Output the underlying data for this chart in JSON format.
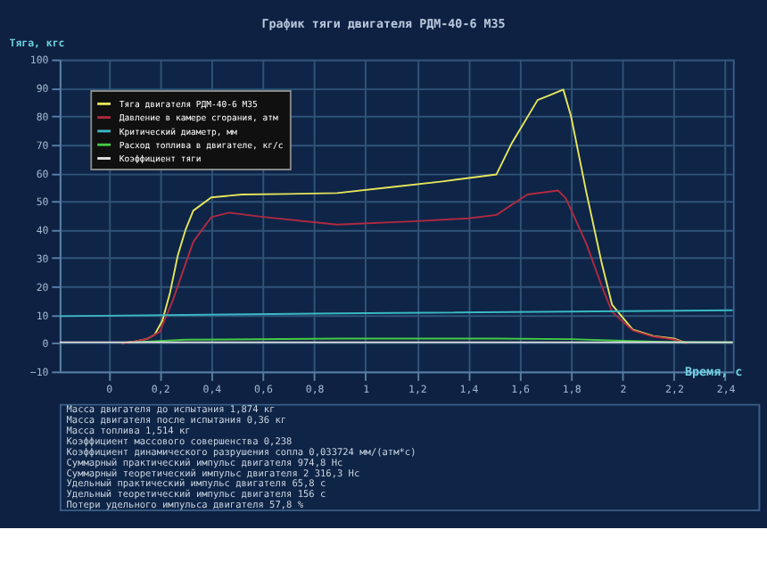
{
  "chart_data": {
    "type": "line",
    "title": "График тяги двигателя РДМ-40-6 М35",
    "xlabel": "Время, с",
    "ylabel": "Тяга, кгс",
    "xlim": [
      -0.19,
      2.43
    ],
    "xticks": [
      {
        "value": 0,
        "label": "0"
      },
      {
        "value": 0.2,
        "label": "0,2"
      },
      {
        "value": 0.4,
        "label": "0,4"
      },
      {
        "value": 0.6,
        "label": "0,6"
      },
      {
        "value": 0.8,
        "label": "0,8"
      },
      {
        "value": 1,
        "label": "1"
      },
      {
        "value": 1.2,
        "label": "1,2"
      },
      {
        "value": 1.4,
        "label": "1,4"
      },
      {
        "value": 1.6,
        "label": "1,6"
      },
      {
        "value": 1.8,
        "label": "1,8"
      },
      {
        "value": 2,
        "label": "2"
      },
      {
        "value": 2.2,
        "label": "2,2"
      },
      {
        "value": 2.4,
        "label": "2,4"
      }
    ],
    "ylim": [
      -10,
      100
    ],
    "yticks": [
      -10,
      0,
      10,
      20,
      30,
      40,
      50,
      60,
      70,
      80,
      90,
      100
    ],
    "grid": true,
    "legend": "top left",
    "marker": "none",
    "line_style": "solid",
    "series": [
      {
        "name": "Тяга двигателя РДМ-40-6 М35",
        "color": "#e6e65c",
        "x": [
          0.05,
          0.1,
          0.15,
          0.18,
          0.21,
          0.24,
          0.27,
          0.3,
          0.33,
          0.4,
          0.52,
          0.7,
          0.89,
          1.1,
          1.3,
          1.51,
          1.57,
          1.67,
          1.72,
          1.77,
          1.8,
          1.86,
          1.92,
          1.96,
          2.04,
          2.12,
          2.2,
          2.25
        ],
        "values": [
          0,
          0.5,
          1.5,
          3,
          8,
          18,
          31,
          40,
          46.7,
          51.4,
          52.4,
          52.6,
          52.9,
          55,
          57,
          59.5,
          70.6,
          85.7,
          87.5,
          89.4,
          80,
          53,
          28,
          13.5,
          4.8,
          2.5,
          1.6,
          0
        ]
      },
      {
        "name": "Давление в камере сгорания, атм",
        "color": "#b02a40",
        "x": [
          0.05,
          0.1,
          0.15,
          0.2,
          0.25,
          0.3,
          0.33,
          0.4,
          0.47,
          0.6,
          0.89,
          1.2,
          1.4,
          1.51,
          1.63,
          1.75,
          1.78,
          1.86,
          1.92,
          1.96,
          2.04,
          2.12,
          2.2,
          2.25
        ],
        "values": [
          0,
          0.5,
          1.5,
          4,
          15,
          28,
          35.7,
          44.4,
          46,
          44.5,
          41.8,
          43,
          44,
          45.2,
          52.4,
          53.8,
          51,
          35,
          20,
          11,
          4.5,
          2.3,
          1.3,
          0
        ]
      },
      {
        "name": "Критический диаметр, мм",
        "color": "#3ab8c4",
        "x": [
          -0.19,
          0.89,
          2.43
        ],
        "values": [
          9.5,
          10.5,
          11.6
        ]
      },
      {
        "name": "Расход топлива в двигателе, кг/с",
        "color": "#44cc44",
        "x": [
          0.1,
          0.3,
          0.9,
          1.5,
          1.8,
          2.0,
          2.2,
          2.43
        ],
        "values": [
          0.3,
          1.2,
          1.6,
          1.6,
          1.4,
          0.8,
          0.4,
          0.3
        ]
      },
      {
        "name": "Коэффициент тяги",
        "color": "#e4e4e4",
        "x": [
          -0.19,
          2.43
        ],
        "values": [
          0.3,
          0.3
        ]
      }
    ],
    "annotations": [
      "Масса двигателя до испытания    1,874  кг",
      "Масса двигателя после испытания    0,36  кг",
      "Масса топлива    1,514  кг",
      "Коэффициент массового совершенства    0,238",
      "Коэффициент динамического разрушения сопла    0,033724  мм/(атм*с)",
      "Суммарный практический импульс двигателя    974,8  Нс",
      "Суммарный теоретический импульс двигателя    2 316,3  Нс",
      "Удельный практический импульс двигателя    65,8  с",
      "Удельный теоретический импульс двигателя    156  с",
      "Потери удельного импульса двигателя    57,8  %"
    ]
  }
}
